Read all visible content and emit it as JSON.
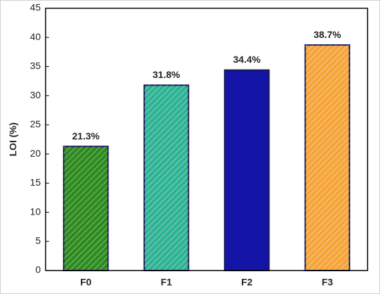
{
  "chart_data": {
    "type": "bar",
    "ylabel": "LOI (%)",
    "categories": [
      "F0",
      "F1",
      "F2",
      "F3"
    ],
    "values": [
      21.3,
      31.8,
      34.4,
      38.7
    ],
    "value_labels": [
      "21.3%",
      "31.8%",
      "34.4%",
      "38.7%"
    ],
    "colors": [
      "#2e8b1f",
      "#2fb394",
      "#1414a6",
      "#f5a53a"
    ],
    "hatch": [
      true,
      true,
      false,
      true
    ],
    "ylim": [
      0,
      45
    ],
    "yticks": [
      0,
      5,
      10,
      15,
      20,
      25,
      30,
      35,
      40,
      45
    ]
  }
}
